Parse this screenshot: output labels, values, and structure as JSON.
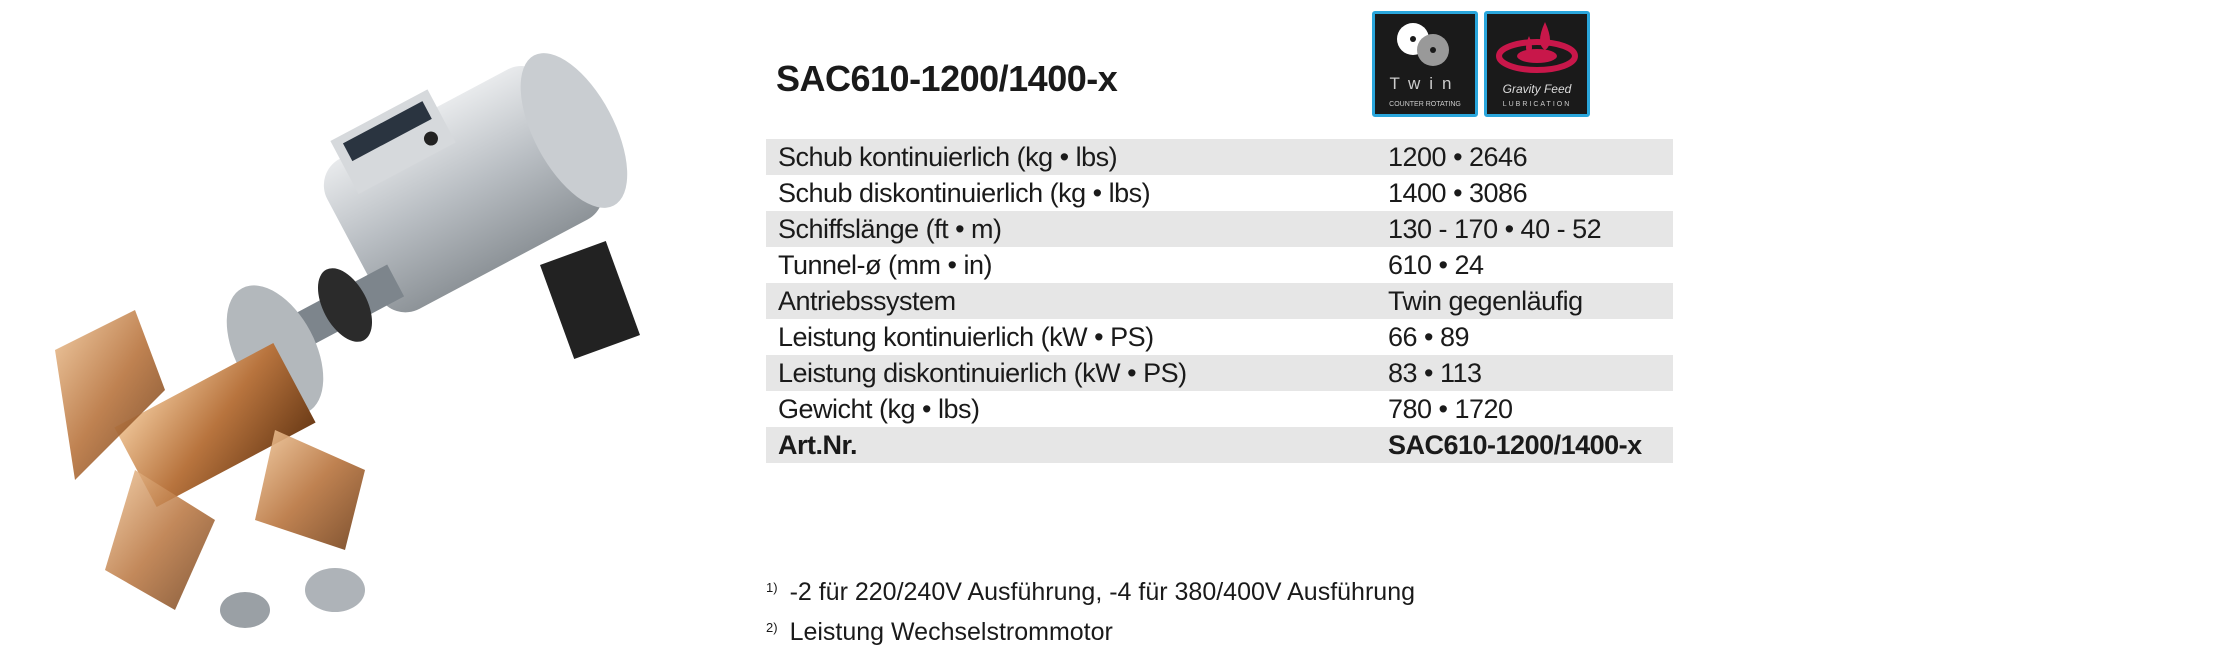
{
  "title": "SAC610-1200/1400-x",
  "logos": [
    {
      "line1": "Twin",
      "line2": "COUNTER ROTATING",
      "icon": "twin-propeller-icon"
    },
    {
      "line1": "Gravity Feed",
      "line2": "LUBRICATION",
      "icon": "oil-drop-icon",
      "color": "#c8174a"
    }
  ],
  "accent_color": "#2aa6dc",
  "specs": [
    {
      "label": "Schub kontinuierlich (kg • lbs)",
      "value": "1200 • 2646"
    },
    {
      "label": "Schub diskontinuierlich (kg • lbs)",
      "value": "1400 • 3086"
    },
    {
      "label": "Schiffslänge (ft • m)",
      "value": "130 - 170 • 40 - 52"
    },
    {
      "label": "Tunnel-ø (mm • in)",
      "value": "610 • 24"
    },
    {
      "label": "Antriebssystem",
      "value": "Twin gegenläufig"
    },
    {
      "label": "Leistung kontinuierlich (kW • PS)",
      "value": "66 • 89"
    },
    {
      "label": "Leistung diskontinuierlich (kW • PS)",
      "value": "83 • 113"
    },
    {
      "label": "Gewicht (kg • lbs)",
      "value": "780 • 1720"
    },
    {
      "label": "Art.Nr.",
      "value": "SAC610-1200/1400-x"
    }
  ],
  "footnotes": [
    {
      "mark": "1)",
      "text": "-2 für 220/240V Ausführung, -4 für 380/400V Ausführung"
    },
    {
      "mark": "2)",
      "text": "Leistung Wechselstrommotor"
    }
  ]
}
